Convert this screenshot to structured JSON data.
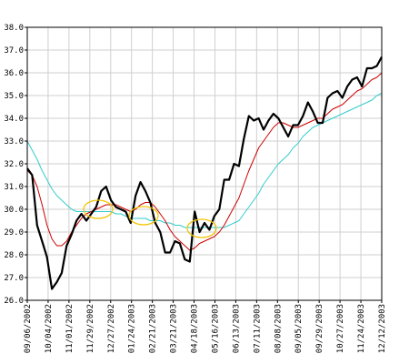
{
  "chart_data": {
    "type": "line",
    "title": "",
    "xlabel": "",
    "ylabel": "",
    "ylim": [
      26.0,
      38.0
    ],
    "y_ticks": [
      "26.0",
      "27.0",
      "28.0",
      "29.0",
      "30.0",
      "31.0",
      "32.0",
      "33.0",
      "34.0",
      "35.0",
      "36.0",
      "37.0",
      "38.0"
    ],
    "x_ticks": [
      "09/06/2002",
      "10/04/2002",
      "11/01/2002",
      "11/29/2002",
      "12/27/2002",
      "01/24/2003",
      "02/21/2003",
      "03/21/2003",
      "04/18/2003",
      "05/16/2003",
      "06/13/2003",
      "07/11/2003",
      "08/08/2003",
      "09/05/2003",
      "09/29/2003",
      "10/27/2003",
      "11/24/2003",
      "12/12/2003"
    ],
    "grid": true,
    "legend": "none",
    "series": [
      {
        "color": "#000000",
        "values": [
          31.8,
          31.5,
          29.3,
          28.6,
          27.9,
          26.5,
          26.8,
          27.2,
          28.4,
          28.9,
          29.5,
          29.8,
          29.5,
          29.8,
          30.1,
          30.8,
          31.0,
          30.4,
          30.1,
          30.0,
          29.9,
          29.4,
          30.6,
          31.2,
          30.8,
          30.3,
          29.4,
          29.0,
          28.1,
          28.1,
          28.6,
          28.5,
          27.8,
          27.7,
          29.9,
          29.0,
          29.4,
          29.1,
          29.7,
          30.0,
          31.3,
          31.3,
          32.0,
          31.9,
          33.1,
          34.1,
          33.9,
          34.0,
          33.5,
          33.9,
          34.2,
          34.0,
          33.6,
          33.2,
          33.7,
          33.7,
          34.1,
          34.7,
          34.3,
          33.8,
          33.8,
          34.9,
          35.1,
          35.2,
          34.9,
          35.4,
          35.7,
          35.8,
          35.4,
          36.2,
          36.2,
          36.3,
          36.7
        ]
      },
      {
        "color": "#cc0000",
        "values": [
          31.7,
          31.5,
          31.0,
          30.2,
          29.3,
          28.7,
          28.4,
          28.4,
          28.6,
          29.0,
          29.3,
          29.6,
          29.8,
          29.9,
          30.0,
          30.1,
          30.2,
          30.2,
          30.2,
          30.1,
          30.0,
          29.9,
          30.0,
          30.2,
          30.3,
          30.3,
          30.1,
          29.8,
          29.5,
          29.1,
          28.8,
          28.6,
          28.4,
          28.2,
          28.3,
          28.5,
          28.6,
          28.7,
          28.8,
          29.0,
          29.3,
          29.7,
          30.1,
          30.5,
          31.1,
          31.7,
          32.2,
          32.7,
          33.0,
          33.3,
          33.6,
          33.8,
          33.8,
          33.7,
          33.6,
          33.6,
          33.7,
          33.8,
          33.9,
          34.0,
          34.0,
          34.2,
          34.4,
          34.5,
          34.6,
          34.8,
          35.0,
          35.2,
          35.3,
          35.5,
          35.7,
          35.8,
          36.0
        ]
      },
      {
        "color": "#33cccc",
        "values": [
          33.0,
          32.6,
          32.2,
          31.7,
          31.3,
          30.9,
          30.6,
          30.4,
          30.2,
          30.0,
          29.9,
          29.9,
          29.9,
          29.9,
          29.9,
          29.9,
          29.9,
          29.9,
          29.8,
          29.8,
          29.7,
          29.6,
          29.6,
          29.6,
          29.6,
          29.5,
          29.5,
          29.5,
          29.4,
          29.4,
          29.3,
          29.3,
          29.2,
          29.2,
          29.2,
          29.2,
          29.2,
          29.2,
          29.2,
          29.2,
          29.2,
          29.3,
          29.4,
          29.5,
          29.8,
          30.1,
          30.4,
          30.7,
          31.1,
          31.4,
          31.7,
          32.0,
          32.2,
          32.4,
          32.7,
          32.9,
          33.2,
          33.4,
          33.6,
          33.7,
          33.8,
          33.9,
          34.0,
          34.1,
          34.2,
          34.3,
          34.4,
          34.5,
          34.6,
          34.7,
          34.8,
          35.0,
          35.1
        ]
      }
    ]
  }
}
